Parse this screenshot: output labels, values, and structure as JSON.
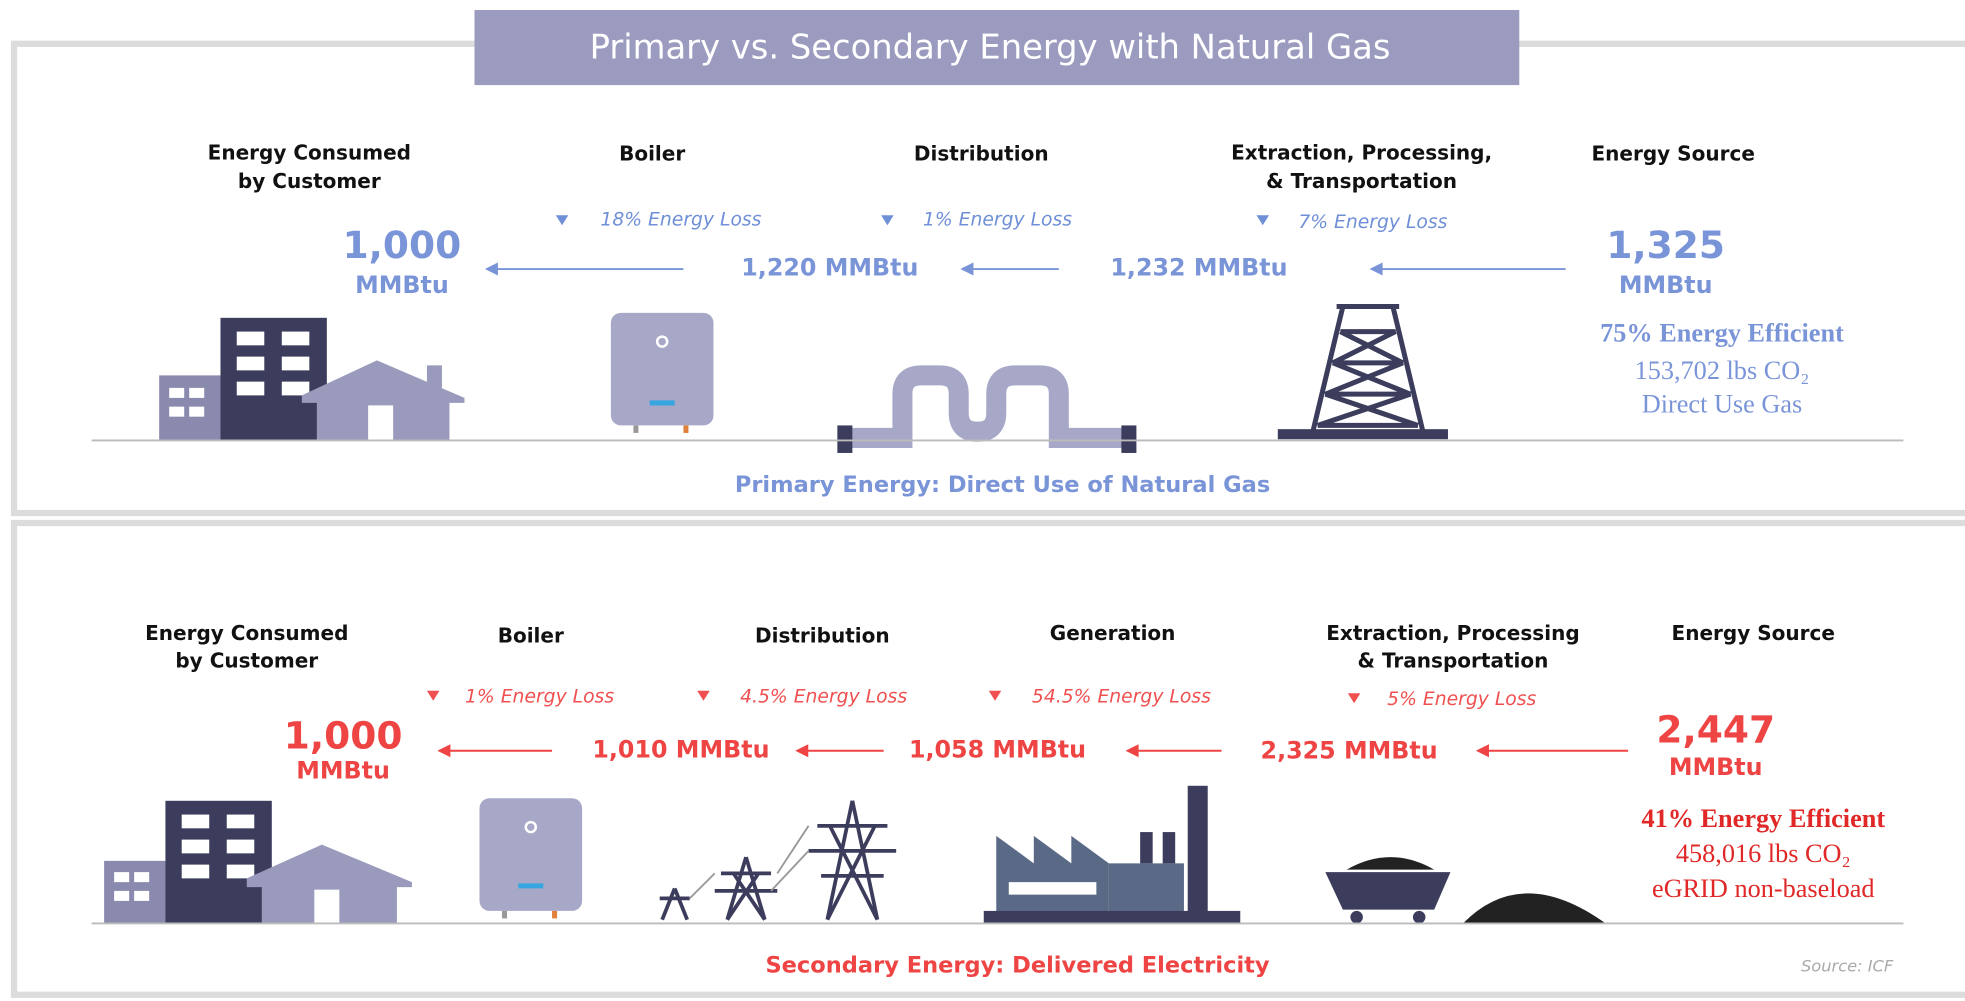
{
  "title": "Primary vs. Secondary Energy with Natural Gas",
  "primary": {
    "stages": [
      [
        "Energy Consumed",
        "by Customer"
      ],
      [
        "Boiler"
      ],
      [
        "Distribution"
      ],
      [
        "Extraction, Processing,",
        "& Transportation"
      ],
      [
        "Energy Source"
      ]
    ],
    "losses": [
      "18% Energy Loss",
      "1% Energy Loss",
      "7% Energy Loss"
    ],
    "consumed": "1,000",
    "source": "1,325",
    "unit": "MMBtu",
    "amounts": [
      "1,220 MMBtu",
      "1,232 MMBtu"
    ],
    "efficiency": "75% Energy Efficient",
    "co2": "153,702 lbs CO₂",
    "basis": "Direct Use Gas",
    "caption": "Primary Energy: Direct Use of Natural Gas"
  },
  "secondary": {
    "stages": [
      [
        "Energy Consumed",
        "by Customer"
      ],
      [
        "Boiler"
      ],
      [
        "Distribution"
      ],
      [
        "Generation"
      ],
      [
        "Extraction, Processing",
        "& Transportation"
      ],
      [
        "Energy Source"
      ]
    ],
    "losses": [
      "1% Energy Loss",
      "4.5% Energy Loss",
      "54.5% Energy Loss",
      "5% Energy Loss"
    ],
    "consumed": "1,000",
    "source": "2,447",
    "unit": "MMBtu",
    "amounts": [
      "1,010 MMBtu",
      "1,058 MMBtu",
      "2,325 MMBtu"
    ],
    "efficiency": "41% Energy Efficient",
    "co2": "458,016 lbs CO₂",
    "basis": "eGRID non-baseload",
    "caption": "Secondary Energy: Delivered Electricity"
  },
  "source": "Source: ICF"
}
